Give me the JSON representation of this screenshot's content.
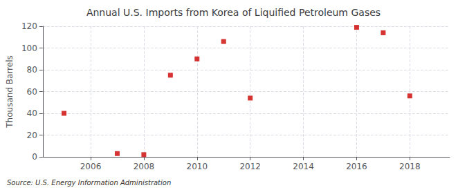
{
  "chart_data": {
    "type": "scatter",
    "title": "Annual U.S. Imports from Korea of Liquified Petroleum Gases",
    "ylabel": "Thousand Barrels",
    "source": "Source: U.S. Energy Information Administration",
    "x": [
      2005,
      2007,
      2008,
      2009,
      2010,
      2011,
      2012,
      2016,
      2017,
      2018
    ],
    "values": [
      40,
      3,
      2,
      75,
      90,
      106,
      54,
      119,
      114,
      56
    ],
    "color": "#cc0000",
    "marker": "square",
    "xlim": [
      2004.2,
      2019.5
    ],
    "ylim": [
      0,
      120
    ],
    "xticks": [
      2006,
      2008,
      2010,
      2012,
      2014,
      2016,
      2018
    ],
    "yticks": [
      0,
      20,
      40,
      60,
      80,
      100,
      120
    ],
    "grid": true
  }
}
